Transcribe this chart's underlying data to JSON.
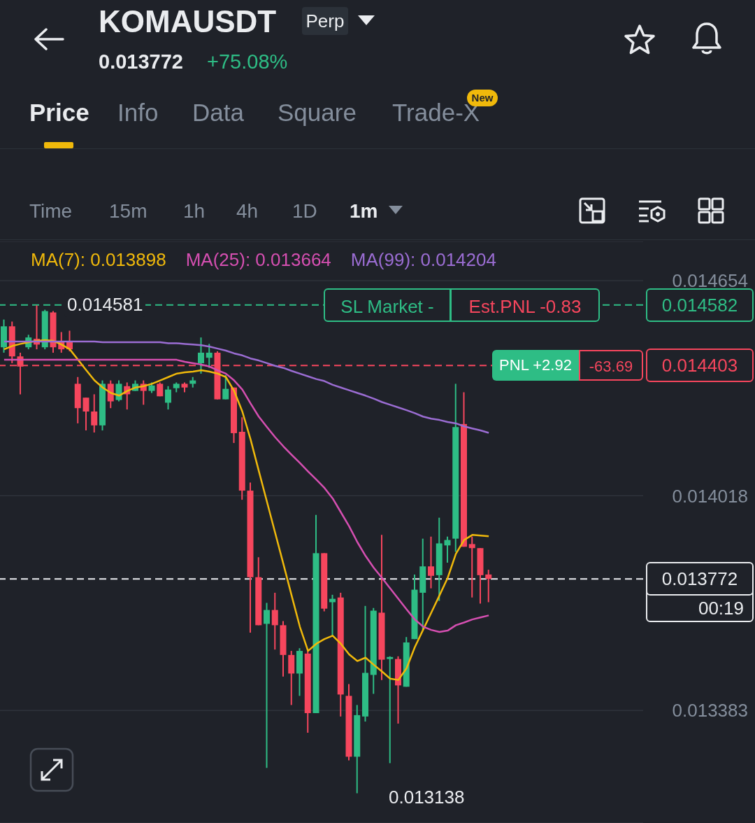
{
  "chart_data": {
    "type": "candlestick",
    "title": "KOMAUSDT",
    "categories": [
      null,
      null,
      null,
      null,
      null,
      null,
      null,
      null,
      null,
      null,
      null,
      null,
      null,
      null,
      null,
      null,
      null,
      null,
      null,
      null,
      null,
      null,
      null,
      null,
      null,
      null,
      null,
      null,
      null,
      null,
      null,
      null,
      null,
      null,
      null,
      null,
      null,
      null,
      null,
      null,
      null,
      null,
      null,
      null,
      null,
      null,
      null,
      null,
      null,
      null,
      null,
      null,
      null,
      null,
      null,
      null,
      null,
      null,
      null,
      null
    ],
    "ohlc": [
      [
        0.014457,
        0.014539,
        0.014441,
        0.014519
      ],
      [
        0.014519,
        0.014533,
        0.01441,
        0.01443
      ],
      [
        0.01443,
        0.014441,
        0.014318,
        0.0144
      ],
      [
        0.014457,
        0.014494,
        0.014451,
        0.014486
      ],
      [
        0.014482,
        0.014581,
        0.014451,
        0.014465
      ],
      [
        0.014457,
        0.014568,
        0.014451,
        0.014564
      ],
      [
        0.01456,
        0.014564,
        0.014441,
        0.014457
      ],
      [
        0.014472,
        0.014502,
        0.014441,
        0.014451
      ],
      [
        0.014472,
        0.014506,
        0.014445,
        0.014451
      ],
      [
        0.014349,
        0.014369,
        0.014232,
        0.014277
      ],
      [
        0.014308,
        0.014308,
        0.014211,
        0.014267
      ],
      [
        0.014267,
        0.014318,
        0.014205,
        0.014226
      ],
      [
        0.014226,
        0.014359,
        0.014211,
        0.014349
      ],
      [
        0.014349,
        0.014359,
        0.014277,
        0.014297
      ],
      [
        0.014301,
        0.014359,
        0.014297,
        0.014349
      ],
      [
        0.014342,
        0.014353,
        0.014273,
        0.014318
      ],
      [
        0.014328,
        0.014359,
        0.014328,
        0.014349
      ],
      [
        0.014349,
        0.014359,
        0.014287,
        0.014328
      ],
      [
        0.014328,
        0.014353,
        0.014322,
        0.014344
      ],
      [
        0.014349,
        0.014353,
        0.014312,
        0.014312
      ],
      [
        0.014293,
        0.014342,
        0.014273,
        0.014332
      ],
      [
        0.014336,
        0.014353,
        0.014324,
        0.014349
      ],
      [
        0.014349,
        0.014353,
        0.014324,
        0.014338
      ],
      [
        0.014349,
        0.014369,
        0.014338,
        0.014359
      ],
      [
        0.01441,
        0.014486,
        0.014379,
        0.014441
      ],
      [
        0.014426,
        0.014467,
        0.014396,
        0.014441
      ],
      [
        0.014441,
        0.014445,
        0.014303,
        0.014303
      ],
      [
        0.014303,
        0.014375,
        0.014303,
        0.014334
      ],
      [
        0.014338,
        0.014338,
        0.014174,
        0.014203
      ],
      [
        0.014207,
        0.01425,
        0.014006,
        0.014033
      ],
      [
        0.014033,
        0.014057,
        0.013613,
        0.013777
      ],
      [
        0.013777,
        0.013836,
        0.013635,
        0.013635
      ],
      [
        0.013639,
        0.013701,
        0.013213,
        0.01368
      ],
      [
        0.01368,
        0.013731,
        0.013563,
        0.013635
      ],
      [
        0.013635,
        0.013647,
        0.013483,
        0.013547
      ],
      [
        0.013547,
        0.013559,
        0.013399,
        0.013492
      ],
      [
        0.013492,
        0.013567,
        0.013426,
        0.013559
      ],
      [
        0.013551,
        0.013559,
        0.013317,
        0.013375
      ],
      [
        0.013375,
        0.013961,
        0.013375,
        0.013848
      ],
      [
        0.013848,
        0.013848,
        0.013676,
        0.013684
      ],
      [
        0.013703,
        0.013725,
        0.013604,
        0.013713
      ],
      [
        0.013717,
        0.013731,
        0.013365,
        0.01343
      ],
      [
        0.013426,
        0.013461,
        0.013235,
        0.013246
      ],
      [
        0.013246,
        0.013399,
        0.013138,
        0.013369
      ],
      [
        0.013365,
        0.013692,
        0.01335,
        0.013494
      ],
      [
        0.013488,
        0.013686,
        0.013432,
        0.013678
      ],
      [
        0.013672,
        0.013902,
        0.013473,
        0.013533
      ],
      [
        0.013535,
        0.013543,
        0.013227,
        0.013541
      ],
      [
        0.013535,
        0.013543,
        0.013344,
        0.013457
      ],
      [
        0.013453,
        0.0136,
        0.013453,
        0.013584
      ],
      [
        0.013594,
        0.013785,
        0.013594,
        0.01374
      ],
      [
        0.013731,
        0.013891,
        0.013621,
        0.013809
      ],
      [
        0.013809,
        0.013897,
        0.013744,
        0.013781
      ],
      [
        0.013783,
        0.013953,
        0.013707,
        0.013877
      ],
      [
        0.013871,
        0.013897,
        0.01382,
        0.013887
      ],
      [
        0.013891,
        0.014349,
        0.013852,
        0.014221
      ],
      [
        0.01423,
        0.014324,
        0.013867,
        0.013867
      ],
      [
        0.013875,
        0.013897,
        0.013717,
        0.013863
      ],
      [
        0.013863,
        0.013863,
        0.013699,
        0.013783
      ],
      [
        0.013785,
        0.013799,
        0.013703,
        0.013772
      ]
    ],
    "colors": [
      "#2ebd85",
      "#f6465d",
      "#f6465d",
      "#2ebd85",
      "#f6465d",
      "#2ebd85",
      "#f6465d",
      "#f6465d",
      "#f6465d",
      "#f6465d",
      "#f6465d",
      "#f6465d",
      "#2ebd85",
      "#f6465d",
      "#2ebd85",
      "#f6465d",
      "#2ebd85",
      "#f6465d",
      "#2ebd85",
      "#f6465d",
      "#2ebd85",
      "#2ebd85",
      "#f6465d",
      "#2ebd85",
      "#2ebd85",
      "#2ebd85",
      "#f6465d",
      "#2ebd85",
      "#f6465d",
      "#f6465d",
      "#f6465d",
      "#f6465d",
      "#2ebd85",
      "#f6465d",
      "#f6465d",
      "#f6465d",
      "#2ebd85",
      "#f6465d",
      "#2ebd85",
      "#f6465d",
      "#2ebd85",
      "#f6465d",
      "#f6465d",
      "#2ebd85",
      "#2ebd85",
      "#2ebd85",
      "#f6465d",
      "#2ebd85",
      "#f6465d",
      "#2ebd85",
      "#2ebd85",
      "#2ebd85",
      "#f6465d",
      "#2ebd85",
      "#2ebd85",
      "#2ebd85",
      "#f6465d",
      "#f6465d",
      "#f6465d",
      "#f6465d"
    ],
    "series": [
      {
        "type": "line",
        "name": "MA(7): 0.013898",
        "color": "#f0b90b",
        "values": [
          0.014451,
          0.014461,
          0.014467,
          0.014472,
          0.014476,
          0.014478,
          0.014476,
          0.014465,
          0.014451,
          0.01442,
          0.014389,
          0.014359,
          0.014338,
          0.014322,
          0.014314,
          0.014328,
          0.014338,
          0.014342,
          0.014349,
          0.014359,
          0.014369,
          0.014379,
          0.014383,
          0.014385,
          0.014389,
          0.014385,
          0.014379,
          0.014369,
          0.014328,
          0.014267,
          0.014185,
          0.014092,
          0.014,
          0.013908,
          0.013816,
          0.013723,
          0.013631,
          0.013559,
          0.01358,
          0.013594,
          0.013604,
          0.01358,
          0.013549,
          0.013529,
          0.013539,
          0.013518,
          0.013498,
          0.013477,
          0.013473,
          0.013508,
          0.01357,
          0.013621,
          0.013672,
          0.013723,
          0.013775,
          0.013846,
          0.013887,
          0.013902,
          0.0139,
          0.013898
        ]
      },
      {
        "type": "line",
        "name": "MA(25): 0.013664",
        "color": "#d54fb1",
        "values": [
          0.01442,
          0.01442,
          0.01442,
          0.01442,
          0.01442,
          0.01442,
          0.01442,
          0.01442,
          0.01442,
          0.01442,
          0.01442,
          0.01442,
          0.01442,
          0.01442,
          0.01442,
          0.01442,
          0.01442,
          0.01442,
          0.01442,
          0.01442,
          0.01442,
          0.01442,
          0.014414,
          0.01441,
          0.014406,
          0.0144,
          0.014389,
          0.014379,
          0.014359,
          0.014332,
          0.014291,
          0.014252,
          0.014221,
          0.014191,
          0.014164,
          0.014139,
          0.014115,
          0.01409,
          0.014066,
          0.014041,
          0.01401,
          0.013969,
          0.013928,
          0.013881,
          0.01384,
          0.013805,
          0.013775,
          0.013744,
          0.013713,
          0.013682,
          0.013652,
          0.013631,
          0.013621,
          0.013615,
          0.013619,
          0.013635,
          0.013643,
          0.013652,
          0.013658,
          0.013664
        ]
      },
      {
        "type": "line",
        "name": "MA(99): 0.014204",
        "color": "#9b6dd3",
        "values": [
          0.014474,
          0.014474,
          0.014474,
          0.014474,
          0.014474,
          0.014474,
          0.014474,
          0.014474,
          0.014474,
          0.014474,
          0.014474,
          0.014474,
          0.014472,
          0.014472,
          0.014472,
          0.014472,
          0.014472,
          0.014472,
          0.014472,
          0.014472,
          0.014469,
          0.014469,
          0.014467,
          0.014465,
          0.014463,
          0.014459,
          0.014453,
          0.014447,
          0.014439,
          0.014433,
          0.014424,
          0.014418,
          0.01441,
          0.014402,
          0.014396,
          0.014387,
          0.014379,
          0.014371,
          0.014363,
          0.014357,
          0.014346,
          0.014338,
          0.01433,
          0.014322,
          0.014314,
          0.014305,
          0.014295,
          0.014287,
          0.014279,
          0.014271,
          0.014262,
          0.014252,
          0.014246,
          0.014242,
          0.014236,
          0.014232,
          0.014223,
          0.014217,
          0.014211,
          0.014204
        ]
      }
    ],
    "ylim": [
      0.01305,
      0.01477
    ],
    "yticks": [
      0.014654,
      0.014018,
      0.013383
    ],
    "grid": "y",
    "legend": "top",
    "line_style": "solid",
    "marker": "none",
    "ref_lines": [
      {
        "axis": "y",
        "value": 0.014582,
        "label": "0.014582",
        "color": "#2ebd85",
        "line_style": "dashed"
      },
      {
        "axis": "y",
        "value": 0.014403,
        "label": "0.014403",
        "color": "#f6465d",
        "line_style": "dashed"
      },
      {
        "axis": "y",
        "value": 0.013772,
        "label": "0.013772",
        "color": "#eaecef",
        "line_style": "dashed"
      }
    ],
    "annotations": [
      "Perp",
      "0.013772",
      "+75.08%",
      "Price",
      "Info",
      "Data",
      "Square",
      "Trade-X",
      "New",
      "Time",
      "15m",
      "1h",
      "4h",
      "1D",
      "1m",
      {
        "text": "SL Market -",
        "y": 0.014582
      },
      {
        "text": "Est.PNL -0.83",
        "y": 0.014582
      },
      {
        "text": "PNL +2.92",
        "y": 0.014403
      },
      {
        "text": "-63.69",
        "y": 0.014403
      },
      "00:19",
      {
        "text": "0.014581",
        "y": 0.014581
      },
      "0.013138"
    ]
  }
}
